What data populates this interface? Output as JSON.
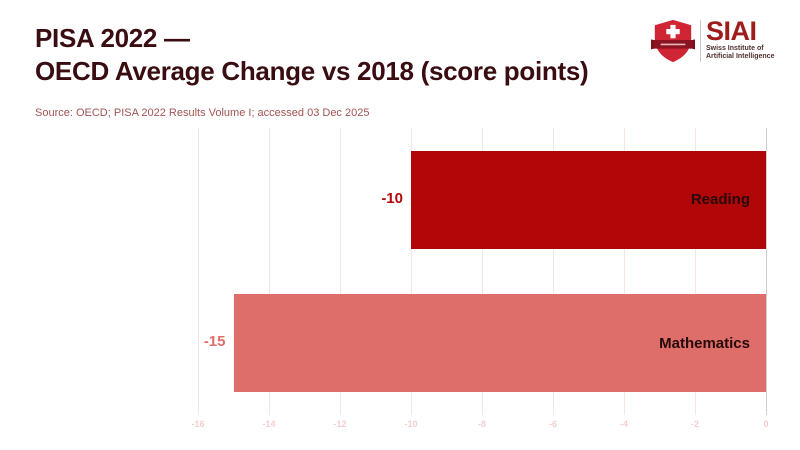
{
  "header": {
    "title_line1": "PISA 2022 —",
    "title_line2": "OECD Average Change vs 2018 (score points)",
    "source": "Source: OECD; PISA 2022 Results Volume I; accessed 03 Dec 2025"
  },
  "logo": {
    "wordmark": "SIAI",
    "subtitle_line1": "Swiss Institute of",
    "subtitle_line2": "Artificial Intelligence"
  },
  "chart_data": {
    "type": "bar",
    "orientation": "horizontal",
    "title": "PISA 2022 — OECD Average Change vs 2018 (score points)",
    "categories": [
      "Reading",
      "Mathematics"
    ],
    "values": [
      -10,
      -15
    ],
    "value_labels": [
      "-10",
      "-15"
    ],
    "bar_colors": [
      "#b20708",
      "#de6e69"
    ],
    "inside_label_color": "#260a0a",
    "x_ticks": [
      -16,
      -14,
      -12,
      -10,
      -8,
      -6,
      -4,
      -2,
      0
    ],
    "xlim": [
      -16.8,
      0.8
    ],
    "xlabel": "",
    "ylabel": "",
    "grid": true,
    "legend": false
  },
  "colors": {
    "background": "#ffffff",
    "title": "#390d11",
    "source": "#a35353",
    "gridline": "#f9e4e4",
    "zero_line": "#cfcfcf",
    "tick_label": "#f2cfcf",
    "logo_red": "#9e1c1c",
    "shield_red": "#cf2534",
    "ribbon_red": "#8c1422"
  }
}
